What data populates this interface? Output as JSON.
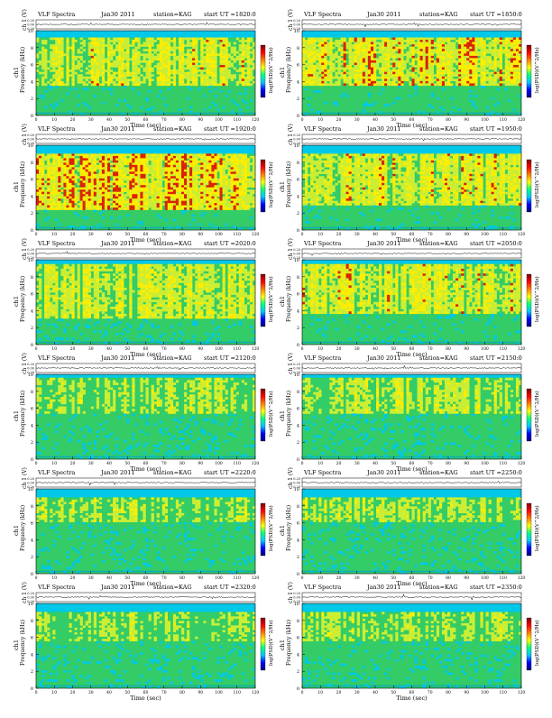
{
  "chart_data": {
    "type": "heatmap",
    "common": {
      "title_left": "VLF Spectra",
      "date": "Jan30 2011",
      "station": "station=KAG",
      "start_prefix": "start UT =",
      "waveform_ylabel": "ch 1 (V)",
      "waveform_ticks": [
        "0.20",
        "0.00",
        "0.20"
      ],
      "channel_label": "ch1",
      "spectro_ylabel": "Frequency (kHz)",
      "freq_ticks": [
        "0",
        "2",
        "4",
        "6",
        "8",
        "10"
      ],
      "xlabel": "Time (sec)",
      "time_ticks": [
        "0",
        "10",
        "20",
        "30",
        "40",
        "50",
        "60",
        "70",
        "80",
        "90",
        "100",
        "110",
        "120"
      ],
      "colorbar_label": "log(PSD)(V^2/Hz)",
      "xlim": [
        0,
        120
      ],
      "ylim": [
        0,
        10
      ]
    },
    "panels": [
      {
        "start": "1820:0",
        "intensity": 0.62,
        "low": 3.5,
        "high": 9.2
      },
      {
        "start": "1850:0",
        "intensity": 0.72,
        "low": 3.5,
        "high": 9.2
      },
      {
        "start": "1920:0",
        "intensity": 0.78,
        "low": 2.5,
        "high": 9.0
      },
      {
        "start": "1950:0",
        "intensity": 0.66,
        "low": 3.0,
        "high": 9.0
      },
      {
        "start": "2020:0",
        "intensity": 0.58,
        "low": 3.0,
        "high": 9.5
      },
      {
        "start": "2050:0",
        "intensity": 0.64,
        "low": 3.5,
        "high": 9.5
      },
      {
        "start": "2120:0",
        "intensity": 0.5,
        "low": 5.5,
        "high": 9.6
      },
      {
        "start": "2150:0",
        "intensity": 0.52,
        "low": 5.5,
        "high": 9.6
      },
      {
        "start": "2220:0",
        "intensity": 0.48,
        "low": 6.0,
        "high": 9.0
      },
      {
        "start": "2250:0",
        "intensity": 0.5,
        "low": 6.0,
        "high": 9.0
      },
      {
        "start": "2320:0",
        "intensity": 0.46,
        "low": 5.5,
        "high": 9.0
      },
      {
        "start": "2350:0",
        "intensity": 0.48,
        "low": 5.5,
        "high": 9.0
      }
    ],
    "colors": {
      "background_low": "#33cc66",
      "mid": "#ccee33",
      "high": "#ffee00",
      "peak": "#dd2200",
      "cutoff_band": "#00c8e8",
      "floor": "#00a0d8",
      "colorbar": [
        "#000080",
        "#0000ff",
        "#00c8ff",
        "#00ff80",
        "#ffff00",
        "#ff8000",
        "#ff0000",
        "#800000"
      ]
    }
  }
}
